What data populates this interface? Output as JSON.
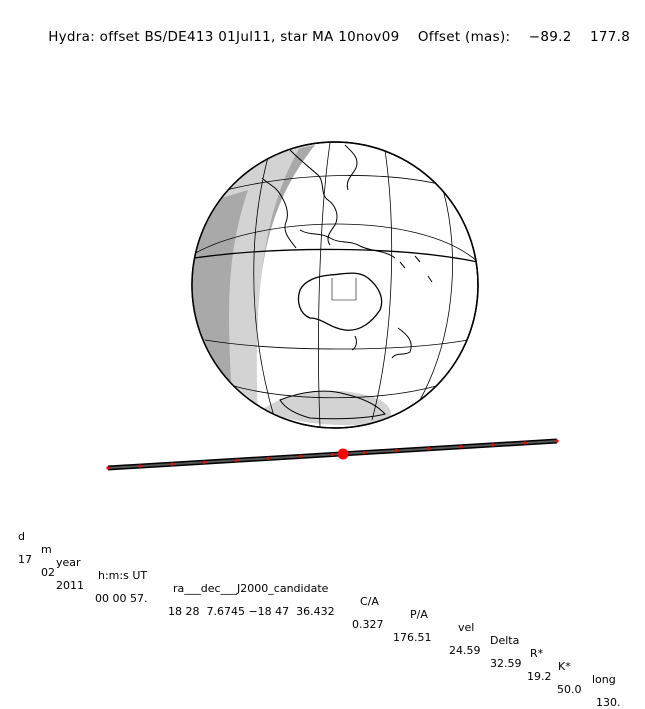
{
  "header": {
    "title": "Hydra: offset BS/DE413 01Jul11, star MA 10nov09",
    "offset_label": "Offset (mas):",
    "offset_x": "−89.2",
    "offset_y": "177.8"
  },
  "table": {
    "headers": [
      "d",
      "m",
      "year",
      "h:m:s UT",
      "ra___dec___J2000_candidate",
      "C/A",
      "P/A",
      "vel",
      "Delta",
      "R*",
      "K*",
      "long"
    ],
    "values": [
      "17",
      "02",
      "2011",
      "00 00 57.",
      "18 28  7.6745 −18 47  36.432",
      "0.327",
      "176.51",
      "24.59",
      "32.59",
      "19.2",
      "50.0",
      "130."
    ]
  },
  "track": {
    "marker_color": "#ff0000",
    "line_color": "#000000",
    "tick_count": 14
  },
  "globe": {
    "shadow_dark": "#a9a9a9",
    "shadow_light": "#d3d3d3"
  }
}
